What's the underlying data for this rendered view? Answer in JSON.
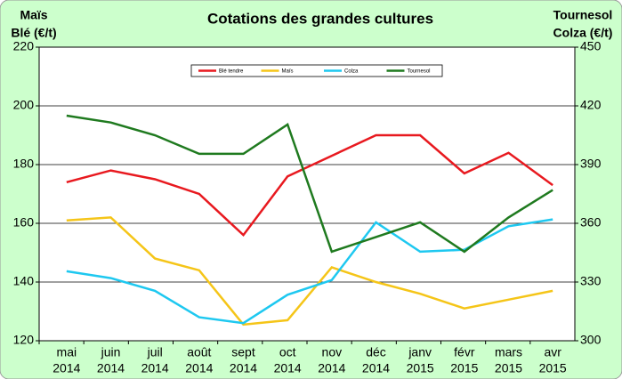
{
  "chart_data": {
    "type": "line",
    "title": "Cotations des grandes cultures",
    "y_label": [
      "Maïs",
      "Blé (€/t)"
    ],
    "y2_label": [
      "Tournesol",
      "Colza (€/t)"
    ],
    "categories": [
      [
        "mai",
        "2014"
      ],
      [
        "juin",
        "2014"
      ],
      [
        "juil",
        "2014"
      ],
      [
        "août",
        "2014"
      ],
      [
        "sept",
        "2014"
      ],
      [
        "oct",
        "2014"
      ],
      [
        "nov",
        "2014"
      ],
      [
        "déc",
        "2014"
      ],
      [
        "janv",
        "2015"
      ],
      [
        "févr",
        "2015"
      ],
      [
        "mars",
        "2015"
      ],
      [
        "avr",
        "2015"
      ]
    ],
    "ylim": [
      120,
      220
    ],
    "yticks": [
      120,
      140,
      160,
      180,
      200,
      220
    ],
    "y2lim": [
      300,
      450
    ],
    "y2ticks": [
      300,
      330,
      360,
      390,
      420,
      450
    ],
    "grid": true,
    "legend": "top",
    "series": [
      {
        "name": "Blé tendre",
        "color": "#e8191f",
        "values": [
          174,
          178,
          175,
          170,
          156,
          176,
          183,
          190,
          190,
          177,
          184,
          173
        ]
      },
      {
        "name": "Maïs",
        "color": "#f5c518",
        "values": [
          161,
          162,
          148,
          144,
          125.5,
          127,
          145,
          140,
          136,
          131,
          134,
          137
        ]
      },
      {
        "name": "Colza",
        "color": "#1ec8f0",
        "axis": "y2",
        "values": [
          335.5,
          332,
          325.5,
          312,
          309,
          323.5,
          331,
          360.5,
          345.5,
          346.5,
          358.5,
          362
        ]
      },
      {
        "name": "Tournesol",
        "color": "#1f7a1f",
        "axis": "y2",
        "values": [
          415,
          411.5,
          405,
          395.5,
          395.5,
          410.5,
          345.5,
          353,
          360.5,
          345.5,
          363,
          377
        ]
      }
    ]
  }
}
